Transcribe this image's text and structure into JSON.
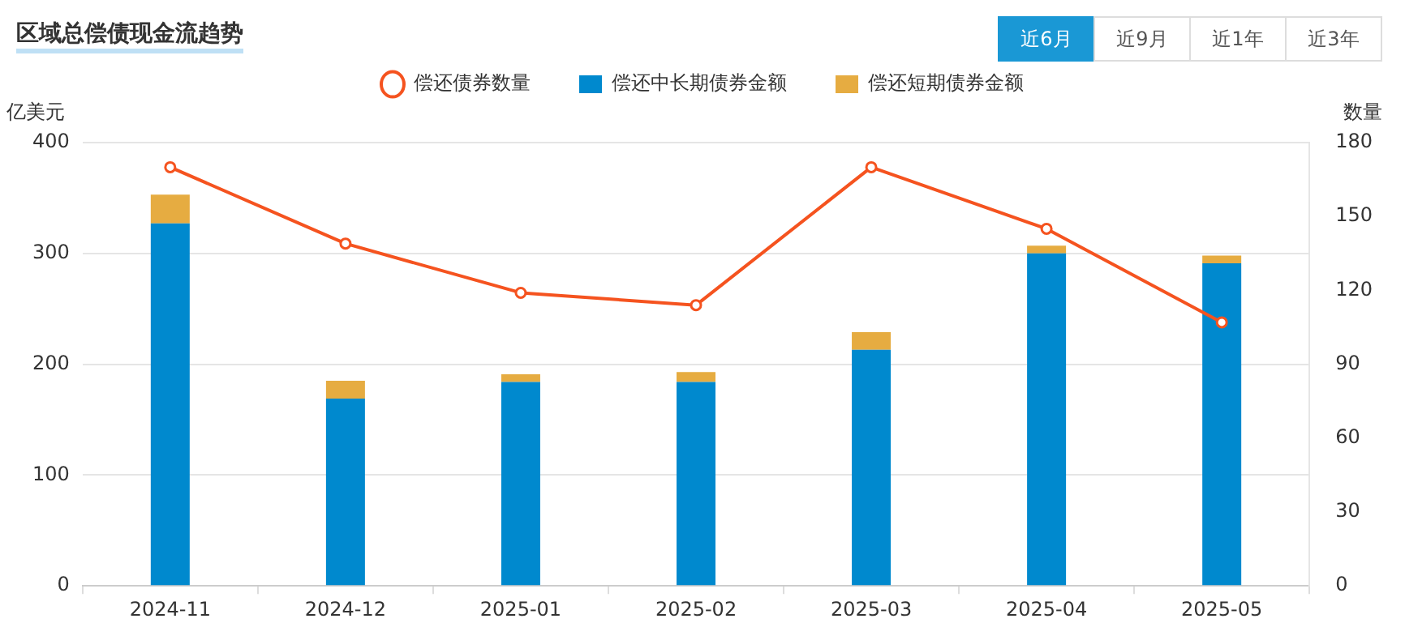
{
  "chart_data": {
    "type": "bar",
    "title": "区域总偿债现金流趋势",
    "ylabel": "亿美元",
    "y2label": "数量",
    "stacked": true,
    "grid": "y",
    "legend": "top",
    "marker": "circle",
    "annotations": [
      "近6月",
      "近9月",
      "近1年",
      "近3年"
    ],
    "categories": [
      "2024-11",
      "2024-12",
      "2025-01",
      "2025-02",
      "2025-03",
      "2025-04",
      "2025-05"
    ],
    "ylim": [
      0,
      400
    ],
    "yticks": [
      0,
      100,
      200,
      300,
      400
    ],
    "y2lim": [
      0,
      180
    ],
    "y2ticks": [
      0,
      30,
      60,
      90,
      120,
      150,
      180
    ],
    "series": [
      {
        "name": "偿还债券数量",
        "type": "line",
        "axis": "y2",
        "color": "#f5531f",
        "values": [
          170,
          139,
          119,
          114,
          170,
          145,
          107
        ]
      },
      {
        "name": "偿还中长期债券金额",
        "color": "#0089ce",
        "values": [
          327,
          169,
          184,
          184,
          213,
          300,
          291
        ]
      },
      {
        "name": "偿还短期债券金额",
        "color": "#e6ac41",
        "values": [
          26,
          16,
          7,
          9,
          16,
          7,
          7
        ]
      }
    ]
  }
}
